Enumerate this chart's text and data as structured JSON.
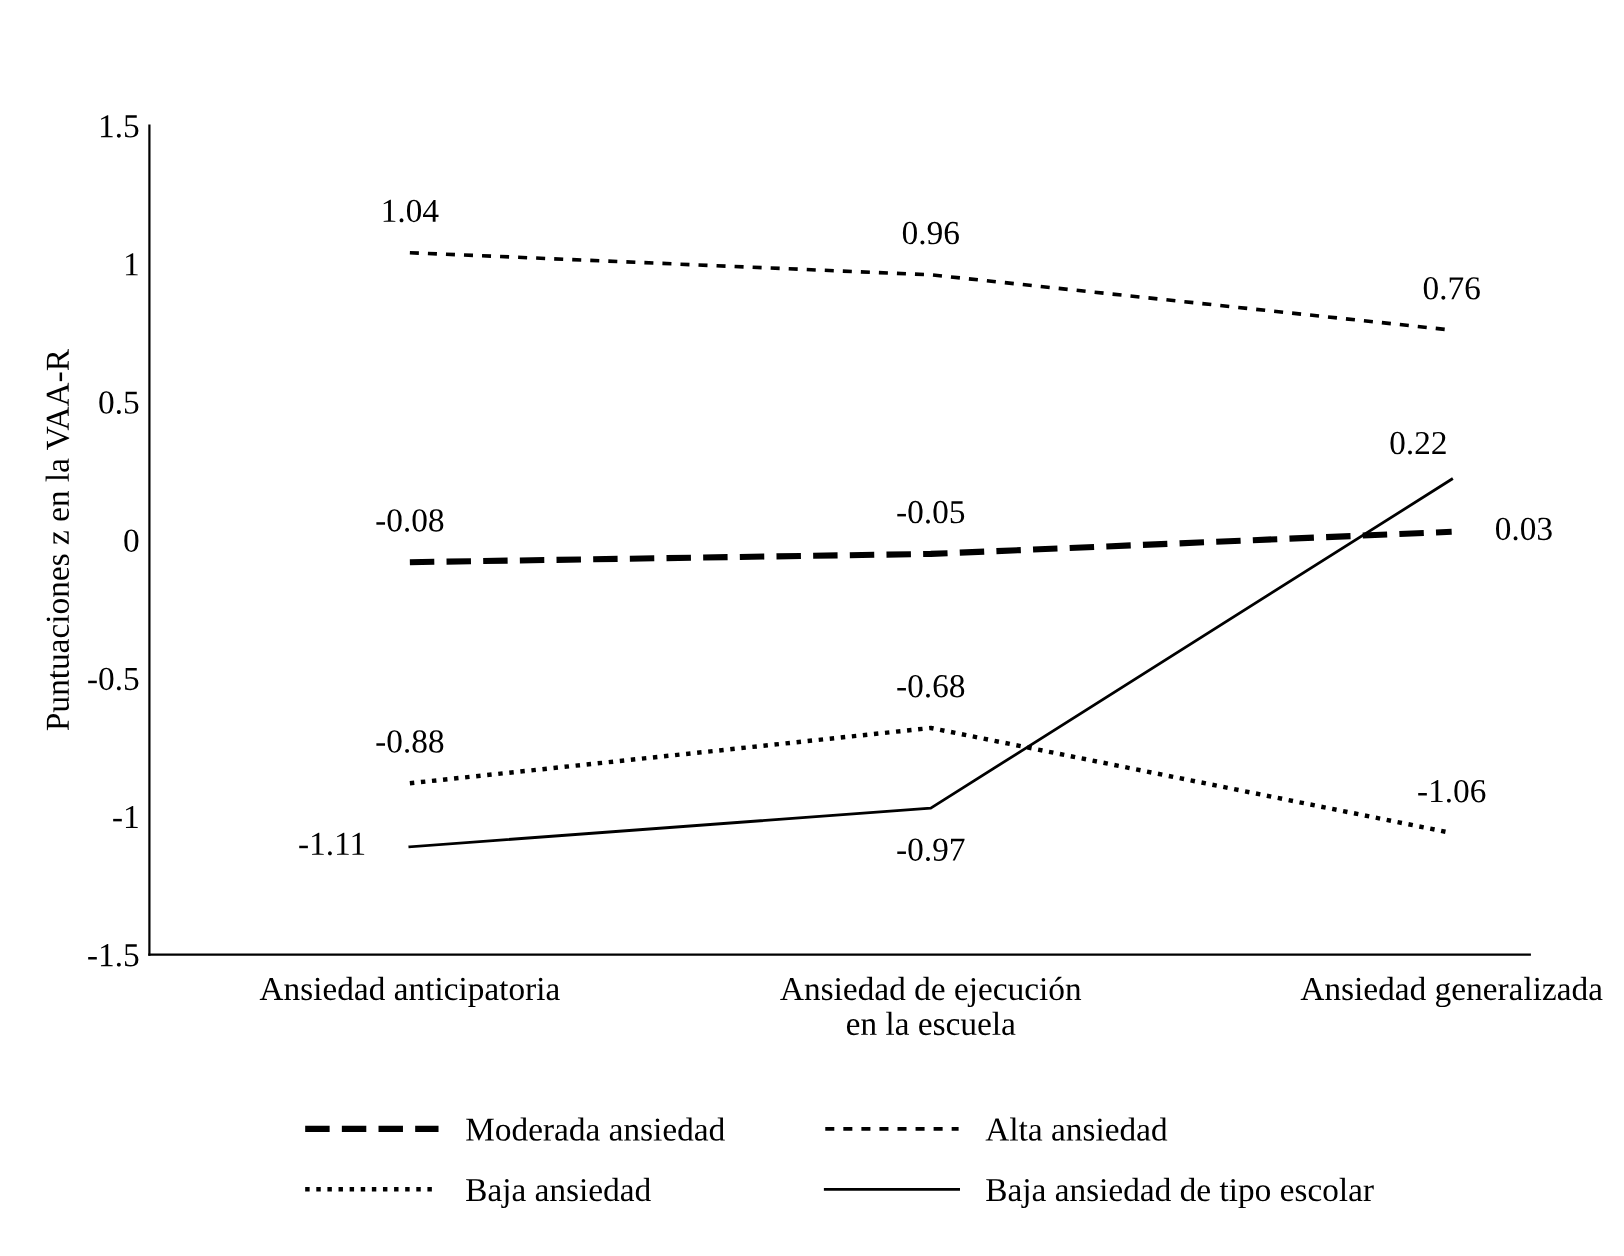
{
  "chart_data": {
    "type": "line",
    "ylabel": "Puntuaciones z en la VAA-R",
    "categories": [
      "Ansiedad anticipatoria",
      "Ansiedad de ejecución\nen la escuela",
      "Ansiedad generalizada"
    ],
    "series": [
      {
        "name": "Moderada ansiedad",
        "color": "#000000",
        "line_style": "dashed",
        "values": [
          -0.08,
          -0.05,
          0.03
        ]
      },
      {
        "name": "Alta ansiedad",
        "color": "#000000",
        "line_style": "dashed",
        "values": [
          1.04,
          0.96,
          0.76
        ]
      },
      {
        "name": "Baja ansiedad",
        "color": "#000000",
        "line_style": "dotted",
        "values": [
          -0.88,
          -0.68,
          -1.06
        ]
      },
      {
        "name": "Baja ansiedad de tipo escolar",
        "color": "#000000",
        "line_style": "solid",
        "values": [
          -1.11,
          -0.97,
          0.22
        ]
      }
    ],
    "ylim": [
      -1.5,
      1.5
    ],
    "yticks": [
      -1.5,
      -1,
      -0.5,
      0,
      0.5,
      1,
      1.5
    ],
    "data_labels": true,
    "legend": "bottom",
    "marker": "none"
  }
}
